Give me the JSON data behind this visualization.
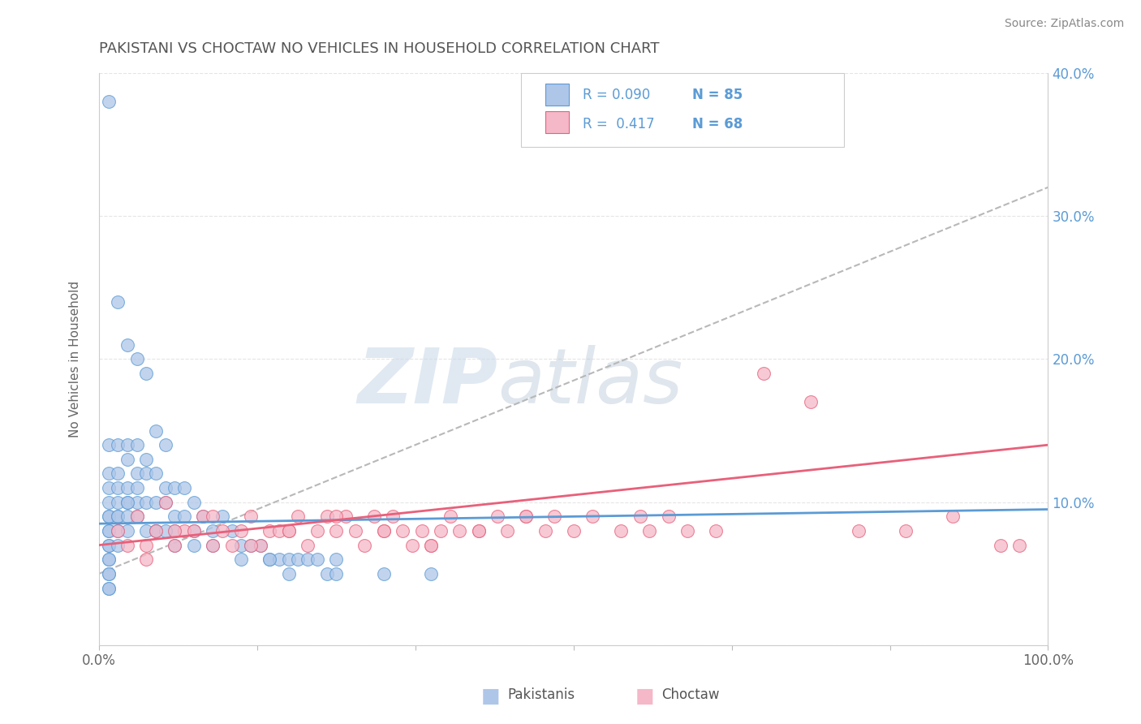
{
  "title": "PAKISTANI VS CHOCTAW NO VEHICLES IN HOUSEHOLD CORRELATION CHART",
  "source": "Source: ZipAtlas.com",
  "ylabel": "No Vehicles in Household",
  "xlim": [
    0,
    100
  ],
  "ylim": [
    0,
    40
  ],
  "watermark_line1": "ZIP",
  "watermark_line2": "atlas",
  "legend_r_pakistani": "R = 0.090",
  "legend_n_pakistani": "N = 85",
  "legend_r_choctaw": "R =  0.417",
  "legend_n_choctaw": "N = 68",
  "pakistani_face_color": "#aec6e8",
  "pakistani_edge_color": "#5b9bd5",
  "choctaw_face_color": "#f4b8c8",
  "choctaw_edge_color": "#e8607a",
  "pakistani_line_color": "#5b9bd5",
  "choctaw_line_color": "#e8607a",
  "dashed_line_color": "#b8b8b8",
  "label_color": "#5b9bd5",
  "title_color": "#555555",
  "source_color": "#888888",
  "axis_color": "#cccccc",
  "grid_color": "#e5e5e5",
  "pk_x": [
    1,
    1,
    1,
    1,
    1,
    1,
    1,
    1,
    1,
    1,
    1,
    1,
    1,
    1,
    1,
    1,
    1,
    2,
    2,
    2,
    2,
    2,
    2,
    2,
    2,
    2,
    3,
    3,
    3,
    3,
    3,
    3,
    3,
    4,
    4,
    4,
    4,
    4,
    5,
    5,
    5,
    5,
    6,
    6,
    6,
    6,
    7,
    7,
    7,
    8,
    8,
    8,
    9,
    9,
    10,
    10,
    11,
    12,
    13,
    14,
    15,
    16,
    17,
    18,
    19,
    20,
    21,
    22,
    23,
    24,
    25,
    3,
    4,
    5,
    6,
    7,
    8,
    10,
    12,
    15,
    18,
    20,
    25,
    30,
    35
  ],
  "pk_y": [
    38,
    14,
    12,
    11,
    10,
    9,
    9,
    8,
    8,
    7,
    7,
    6,
    6,
    5,
    5,
    4,
    4,
    24,
    14,
    12,
    11,
    10,
    9,
    9,
    8,
    7,
    21,
    14,
    13,
    11,
    10,
    9,
    8,
    20,
    14,
    12,
    11,
    10,
    19,
    13,
    12,
    10,
    15,
    12,
    10,
    8,
    14,
    11,
    10,
    11,
    9,
    8,
    11,
    9,
    10,
    8,
    9,
    8,
    9,
    8,
    7,
    7,
    7,
    6,
    6,
    6,
    6,
    6,
    6,
    5,
    5,
    10,
    9,
    8,
    8,
    8,
    7,
    7,
    7,
    6,
    6,
    5,
    6,
    5,
    5
  ],
  "ck_x": [
    2,
    3,
    4,
    5,
    6,
    7,
    8,
    9,
    10,
    11,
    12,
    13,
    14,
    15,
    16,
    17,
    18,
    19,
    20,
    21,
    22,
    23,
    24,
    25,
    26,
    27,
    28,
    29,
    30,
    31,
    32,
    33,
    34,
    35,
    36,
    37,
    38,
    40,
    42,
    43,
    45,
    47,
    48,
    50,
    52,
    55,
    57,
    58,
    60,
    62,
    65,
    70,
    75,
    80,
    85,
    90,
    95,
    97,
    5,
    8,
    12,
    16,
    20,
    25,
    30,
    35,
    40,
    45
  ],
  "ck_y": [
    8,
    7,
    9,
    6,
    8,
    10,
    7,
    8,
    8,
    9,
    7,
    8,
    7,
    8,
    9,
    7,
    8,
    8,
    8,
    9,
    7,
    8,
    9,
    8,
    9,
    8,
    7,
    9,
    8,
    9,
    8,
    7,
    8,
    7,
    8,
    9,
    8,
    8,
    9,
    8,
    9,
    8,
    9,
    8,
    9,
    8,
    9,
    8,
    9,
    8,
    8,
    19,
    17,
    8,
    8,
    9,
    7,
    7,
    7,
    8,
    9,
    7,
    8,
    9,
    8,
    7,
    8,
    9
  ]
}
